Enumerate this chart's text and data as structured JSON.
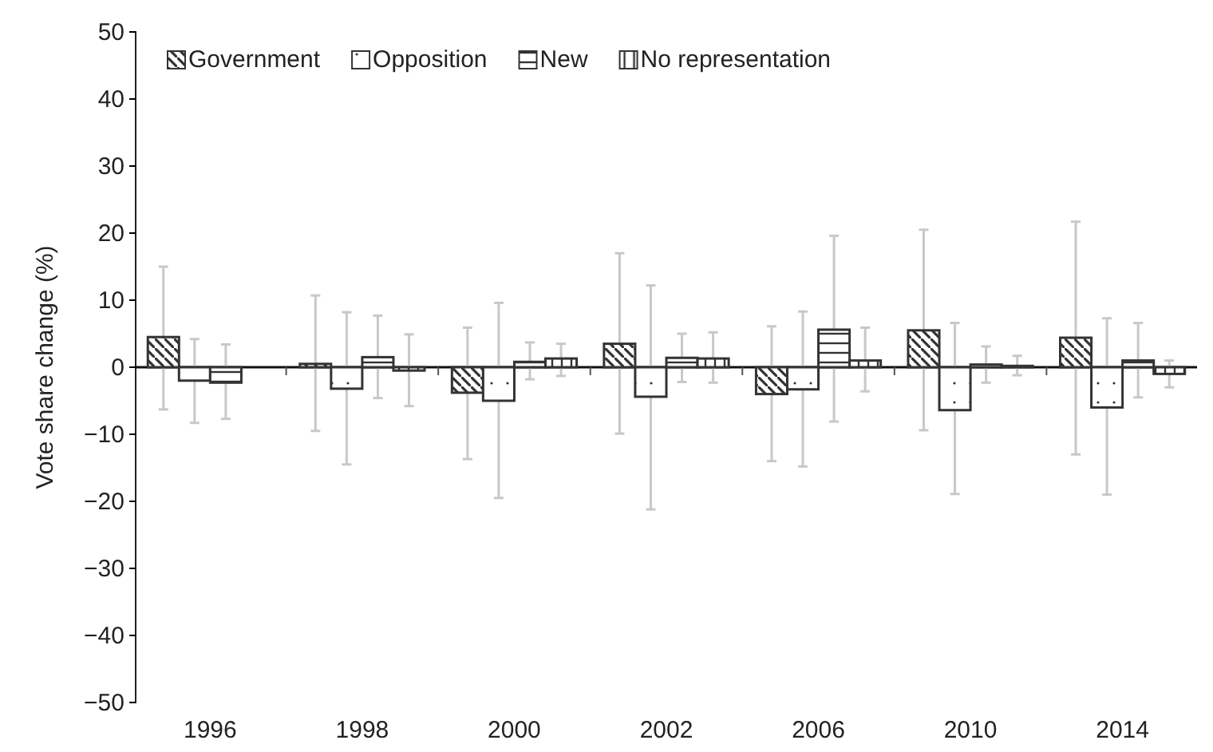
{
  "chart_data": {
    "type": "bar",
    "ylabel": "Vote share change (%)",
    "categories": [
      "1996",
      "1998",
      "2000",
      "2002",
      "2006",
      "2010",
      "2014"
    ],
    "series": [
      {
        "name": "Government",
        "color": "#333333",
        "values": [
          4.5,
          0.5,
          -3.8,
          3.5,
          -4,
          5.5,
          4.4
        ],
        "errors": [
          [
            -6.3,
            15
          ],
          [
            -9.5,
            10.7
          ],
          [
            -13.7,
            5.9
          ],
          [
            -9.9,
            17
          ],
          [
            -14,
            6.1
          ],
          [
            -9.4,
            20.5
          ],
          [
            -13,
            21.7
          ]
        ]
      },
      {
        "name": "Opposition",
        "color": "#333333",
        "values": [
          -2,
          -3.2,
          -5,
          -4.4,
          -3.3,
          -6.4,
          -6
        ],
        "errors": [
          [
            -8.3,
            4.2
          ],
          [
            -14.5,
            8.2
          ],
          [
            -19.5,
            9.6
          ],
          [
            -21.2,
            12.2
          ],
          [
            -14.8,
            8.3
          ],
          [
            -18.9,
            6.6
          ],
          [
            -19,
            7.3
          ]
        ]
      },
      {
        "name": "New",
        "color": "#333333",
        "values": [
          -2.3,
          1.5,
          0.8,
          1.4,
          5.6,
          0.4,
          1
        ],
        "errors": [
          [
            -7.7,
            3.4
          ],
          [
            -4.6,
            7.7
          ],
          [
            -1.8,
            3.7
          ],
          [
            -2.2,
            5
          ],
          [
            -8.1,
            19.6
          ],
          [
            -2.3,
            3.1
          ],
          [
            -4.5,
            6.6
          ]
        ]
      },
      {
        "name": "No representation",
        "color": "#333333",
        "values": [
          null,
          -0.5,
          1.3,
          1.3,
          1,
          0.2,
          -1
        ],
        "errors": [
          null,
          [
            -5.8,
            4.9
          ],
          [
            -1.3,
            3.5
          ],
          [
            -2.3,
            5.2
          ],
          [
            -3.6,
            5.9
          ],
          [
            -1.2,
            1.7
          ],
          [
            -3,
            1
          ]
        ]
      }
    ],
    "ylim": [
      -50,
      50
    ],
    "yticks": [
      {
        "value": -50,
        "label": "−50"
      },
      {
        "value": -40,
        "label": "−40"
      },
      {
        "value": -30,
        "label": "−30"
      },
      {
        "value": -20,
        "label": "−20"
      },
      {
        "value": -10,
        "label": "−10"
      },
      0,
      10,
      20,
      30,
      40,
      50
    ],
    "legend": "top left"
  }
}
